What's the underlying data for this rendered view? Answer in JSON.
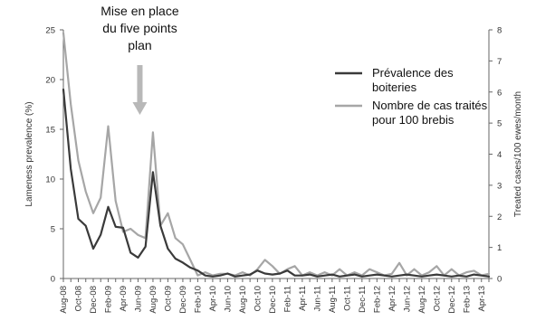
{
  "chart_data": {
    "type": "line",
    "title": "",
    "xlabel": "",
    "ylabel": "Lameness prevalence (%)",
    "y2label": "Treated cases/100 ewes/month",
    "ylim": [
      0,
      25
    ],
    "y2lim": [
      0,
      8
    ],
    "yticks": [
      "0",
      "5",
      "10",
      "15",
      "20",
      "25"
    ],
    "y2ticks": [
      "0",
      "1",
      "2",
      "3",
      "4",
      "5",
      "6",
      "7",
      "8"
    ],
    "x": [
      "Aug-08",
      "Sep-08",
      "Oct-08",
      "Nov-08",
      "Dec-08",
      "Jan-09",
      "Feb-09",
      "Mar-09",
      "Apr-09",
      "May-09",
      "Jun-09",
      "Jul-09",
      "Aug-09",
      "Sep-09",
      "Oct-09",
      "Nov-09",
      "Dec-09",
      "Jan-10",
      "Feb-10",
      "Mar-10",
      "Apr-10",
      "May-10",
      "Jun-10",
      "Jul-10",
      "Aug-10",
      "Sep-10",
      "Oct-10",
      "Nov-10",
      "Dec-10",
      "Jan-11",
      "Feb-11",
      "Mar-11",
      "Apr-11",
      "May-11",
      "Jun-11",
      "Jul-11",
      "Aug-11",
      "Sep-11",
      "Oct-11",
      "Nov-11",
      "Dec-11",
      "Jan-12",
      "Feb-12",
      "Mar-12",
      "Apr-12",
      "May-12",
      "Jun-12",
      "Jul-12",
      "Aug-12",
      "Sep-12",
      "Oct-12",
      "Nov-12",
      "Dec-12",
      "Jan-13",
      "Feb-13",
      "Mar-13",
      "Apr-13",
      "May-13"
    ],
    "x_tick_labels": [
      "Aug-08",
      "Oct-08",
      "Dec-08",
      "Feb-09",
      "Apr-09",
      "Jun-09",
      "Aug-09",
      "Oct-09",
      "Dec-09",
      "Feb-10",
      "Apr-10",
      "Jun-10",
      "Aug-10",
      "Oct-10",
      "Dec-10",
      "Feb-11",
      "Apr-11",
      "Jun-11",
      "Aug-11",
      "Oct-11",
      "Dec-11",
      "Feb-12",
      "Apr-12",
      "Jun-12",
      "Aug-12",
      "Oct-12",
      "Dec-12",
      "Feb-13",
      "Apr-13"
    ],
    "series": [
      {
        "name": "Prévalence des boiteries",
        "axis": "left",
        "color": "#3a3a3a",
        "values": [
          19.0,
          11.0,
          6.0,
          5.3,
          3.0,
          4.4,
          7.2,
          5.2,
          5.1,
          2.6,
          2.1,
          3.2,
          10.7,
          5.3,
          3.0,
          2.0,
          1.6,
          1.1,
          0.8,
          0.3,
          0.2,
          0.3,
          0.5,
          0.2,
          0.3,
          0.4,
          0.8,
          0.5,
          0.4,
          0.5,
          0.8,
          0.3,
          0.3,
          0.4,
          0.2,
          0.3,
          0.4,
          0.2,
          0.3,
          0.4,
          0.2,
          0.3,
          0.4,
          0.3,
          0.2,
          0.3,
          0.4,
          0.3,
          0.2,
          0.3,
          0.4,
          0.3,
          0.2,
          0.3,
          0.2,
          0.4,
          0.3,
          0.2
        ]
      },
      {
        "name": "Nombre de cas traités pour 100 brebis",
        "axis": "right",
        "color": "#a6a6a6",
        "values": [
          7.9,
          5.6,
          3.8,
          2.8,
          2.1,
          2.6,
          4.9,
          2.5,
          1.5,
          1.6,
          1.4,
          1.3,
          4.7,
          1.7,
          2.1,
          1.3,
          1.1,
          0.6,
          0.1,
          0.2,
          0.1,
          0.15,
          0.15,
          0.1,
          0.2,
          0.1,
          0.3,
          0.6,
          0.4,
          0.15,
          0.3,
          0.4,
          0.1,
          0.2,
          0.1,
          0.2,
          0.1,
          0.3,
          0.1,
          0.2,
          0.1,
          0.3,
          0.2,
          0.1,
          0.15,
          0.5,
          0.1,
          0.3,
          0.1,
          0.2,
          0.4,
          0.1,
          0.3,
          0.1,
          0.2,
          0.25,
          0.1,
          0.15
        ]
      }
    ],
    "legend": {
      "placement": "top-right",
      "items": [
        {
          "line1": "Prévalence des",
          "line2": "boiteries",
          "color": "#3a3a3a"
        },
        {
          "line1": "Nombre de cas traités",
          "line2": "pour 100 brebis",
          "color": "#a6a6a6"
        }
      ]
    },
    "annotation": {
      "lines": [
        "Mise en place",
        "du  five points",
        "plan"
      ],
      "at_x": "Jun-09"
    }
  }
}
